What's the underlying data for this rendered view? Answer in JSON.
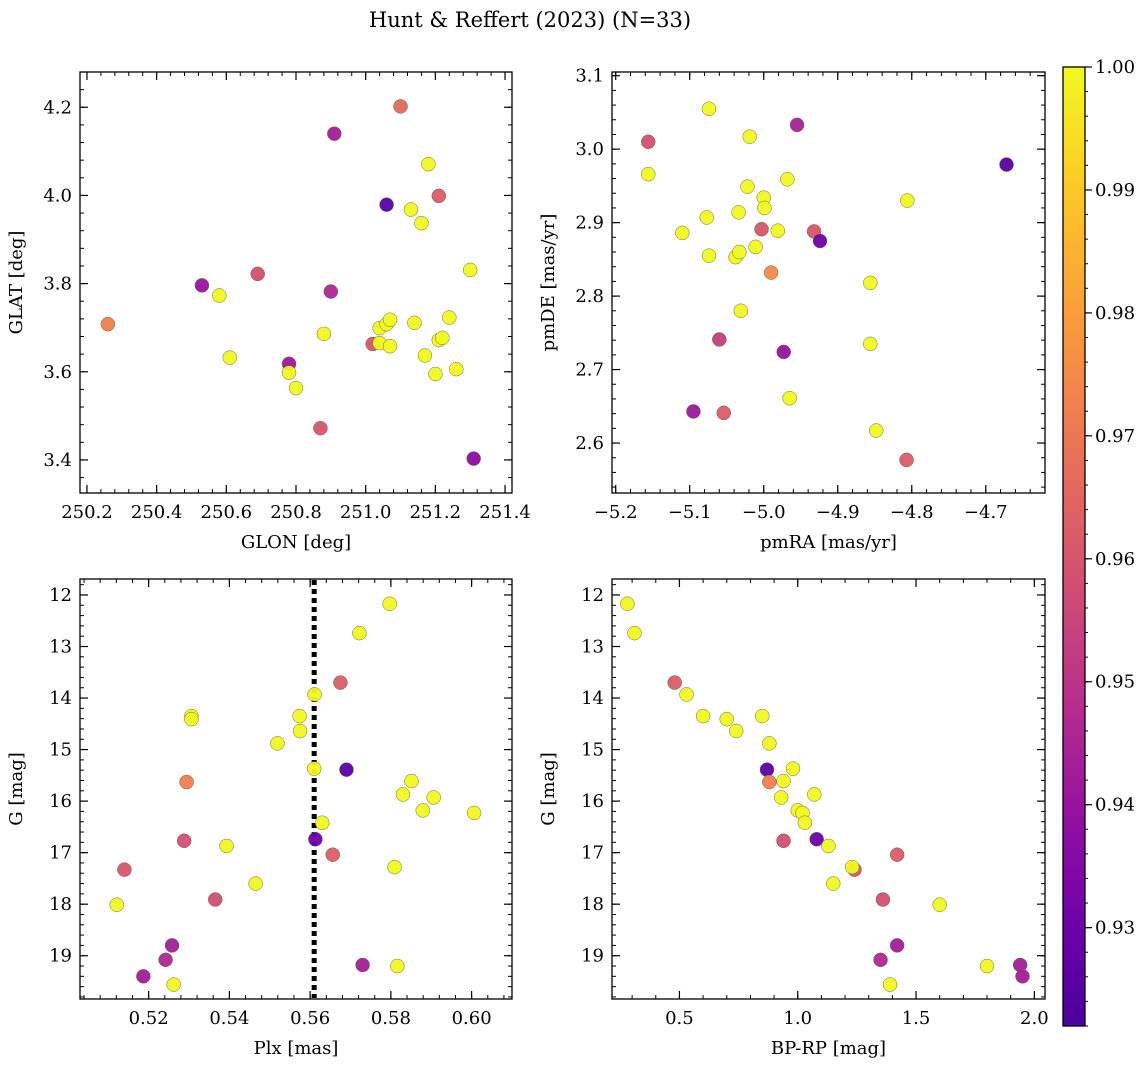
{
  "figure": {
    "title": "Hunt & Reffert (2023) (N=33)"
  },
  "colorbar": {
    "colormap": "plasma",
    "min": 0.922,
    "max": 1.0,
    "ticks": [
      "0.93",
      "0.94",
      "0.95",
      "0.96",
      "0.97",
      "0.98",
      "0.99",
      "1.00"
    ],
    "tick_values": [
      0.93,
      0.94,
      0.95,
      0.96,
      0.97,
      0.98,
      0.99,
      1.0
    ]
  },
  "chart_data": [
    {
      "type": "scatter",
      "id": "glon-glat",
      "xlabel": "GLON [deg]",
      "ylabel": "GLAT [deg]",
      "xlim": [
        250.18,
        251.42
      ],
      "ylim": [
        3.325,
        4.28
      ],
      "xticks": [
        "250.2",
        "250.4",
        "250.6",
        "250.8",
        "251.0",
        "251.2",
        "251.4"
      ],
      "xtick_values": [
        250.2,
        250.4,
        250.6,
        250.8,
        251.0,
        251.2,
        251.4
      ],
      "yticks": [
        "3.4",
        "3.6",
        "3.8",
        "4.0",
        "4.2"
      ],
      "ytick_values": [
        3.4,
        3.6,
        3.8,
        4.0,
        4.2
      ],
      "yinvert": false,
      "points": [
        {
          "x": 250.26,
          "y": 3.708,
          "c": 0.972
        },
        {
          "x": 250.53,
          "y": 3.796,
          "c": 0.94
        },
        {
          "x": 250.58,
          "y": 3.773,
          "c": 1.0
        },
        {
          "x": 250.61,
          "y": 3.632,
          "c": 1.0
        },
        {
          "x": 250.69,
          "y": 3.822,
          "c": 0.958
        },
        {
          "x": 250.78,
          "y": 3.618,
          "c": 0.941
        },
        {
          "x": 250.78,
          "y": 3.598,
          "c": 1.0
        },
        {
          "x": 250.8,
          "y": 3.563,
          "c": 1.0
        },
        {
          "x": 250.87,
          "y": 3.472,
          "c": 0.96
        },
        {
          "x": 250.88,
          "y": 3.686,
          "c": 1.0
        },
        {
          "x": 250.9,
          "y": 3.782,
          "c": 0.946
        },
        {
          "x": 250.91,
          "y": 4.14,
          "c": 0.943
        },
        {
          "x": 251.02,
          "y": 3.663,
          "c": 0.96
        },
        {
          "x": 251.04,
          "y": 3.665,
          "c": 1.0
        },
        {
          "x": 251.04,
          "y": 3.699,
          "c": 1.0
        },
        {
          "x": 251.06,
          "y": 3.708,
          "c": 1.0
        },
        {
          "x": 251.07,
          "y": 3.718,
          "c": 1.0
        },
        {
          "x": 251.07,
          "y": 3.658,
          "c": 1.0
        },
        {
          "x": 251.06,
          "y": 3.979,
          "c": 0.925
        },
        {
          "x": 251.1,
          "y": 4.202,
          "c": 0.966
        },
        {
          "x": 251.13,
          "y": 3.968,
          "c": 1.0
        },
        {
          "x": 251.14,
          "y": 3.711,
          "c": 1.0
        },
        {
          "x": 251.16,
          "y": 3.937,
          "c": 1.0
        },
        {
          "x": 251.17,
          "y": 3.637,
          "c": 1.0
        },
        {
          "x": 251.18,
          "y": 4.071,
          "c": 1.0
        },
        {
          "x": 251.2,
          "y": 3.595,
          "c": 1.0
        },
        {
          "x": 251.21,
          "y": 3.672,
          "c": 1.0
        },
        {
          "x": 251.21,
          "y": 3.999,
          "c": 0.962
        },
        {
          "x": 251.22,
          "y": 3.677,
          "c": 1.0
        },
        {
          "x": 251.24,
          "y": 3.723,
          "c": 1.0
        },
        {
          "x": 251.26,
          "y": 3.606,
          "c": 1.0
        },
        {
          "x": 251.3,
          "y": 3.831,
          "c": 1.0
        },
        {
          "x": 251.31,
          "y": 3.403,
          "c": 0.937
        }
      ]
    },
    {
      "type": "scatter",
      "id": "pmra-pmde",
      "xlabel": "pmRA [mas/yr]",
      "ylabel": "pmDE [mas/yr]",
      "xlim": [
        -5.205,
        -4.62
      ],
      "ylim": [
        2.532,
        3.105
      ],
      "xticks": [
        "−5.2",
        "−5.1",
        "−5.0",
        "−4.9",
        "−4.8",
        "−4.7"
      ],
      "xtick_values": [
        -5.2,
        -5.1,
        -5.0,
        -4.9,
        -4.8,
        -4.7
      ],
      "yticks": [
        "2.6",
        "2.7",
        "2.8",
        "2.9",
        "3.0",
        "3.1"
      ],
      "ytick_values": [
        2.6,
        2.7,
        2.8,
        2.9,
        3.0,
        3.1
      ],
      "yinvert": false,
      "points": [
        {
          "x": -5.156,
          "y": 3.01,
          "c": 0.958
        },
        {
          "x": -5.156,
          "y": 2.966,
          "c": 1.0
        },
        {
          "x": -5.11,
          "y": 2.886,
          "c": 1.0
        },
        {
          "x": -5.095,
          "y": 2.643,
          "c": 0.941
        },
        {
          "x": -5.077,
          "y": 2.907,
          "c": 1.0
        },
        {
          "x": -5.074,
          "y": 3.055,
          "c": 1.0
        },
        {
          "x": -5.074,
          "y": 2.855,
          "c": 1.0
        },
        {
          "x": -5.06,
          "y": 2.741,
          "c": 0.953
        },
        {
          "x": -5.054,
          "y": 2.641,
          "c": 0.962
        },
        {
          "x": -5.038,
          "y": 2.853,
          "c": 1.0
        },
        {
          "x": -5.034,
          "y": 2.914,
          "c": 1.0
        },
        {
          "x": -5.033,
          "y": 2.86,
          "c": 1.0
        },
        {
          "x": -5.031,
          "y": 2.78,
          "c": 1.0
        },
        {
          "x": -5.022,
          "y": 2.949,
          "c": 1.0
        },
        {
          "x": -5.019,
          "y": 3.017,
          "c": 1.0
        },
        {
          "x": -5.011,
          "y": 2.867,
          "c": 1.0
        },
        {
          "x": -5.003,
          "y": 2.891,
          "c": 0.96
        },
        {
          "x": -5.0,
          "y": 2.934,
          "c": 1.0
        },
        {
          "x": -4.999,
          "y": 2.92,
          "c": 1.0
        },
        {
          "x": -4.99,
          "y": 2.832,
          "c": 0.975
        },
        {
          "x": -4.981,
          "y": 2.889,
          "c": 1.0
        },
        {
          "x": -4.973,
          "y": 2.724,
          "c": 0.94
        },
        {
          "x": -4.968,
          "y": 2.959,
          "c": 1.0
        },
        {
          "x": -4.965,
          "y": 2.661,
          "c": 1.0
        },
        {
          "x": -4.955,
          "y": 3.033,
          "c": 0.944
        },
        {
          "x": -4.932,
          "y": 2.888,
          "c": 0.96
        },
        {
          "x": -4.924,
          "y": 2.875,
          "c": 0.93
        },
        {
          "x": -4.856,
          "y": 2.818,
          "c": 1.0
        },
        {
          "x": -4.856,
          "y": 2.735,
          "c": 1.0
        },
        {
          "x": -4.848,
          "y": 2.617,
          "c": 1.0
        },
        {
          "x": -4.807,
          "y": 2.577,
          "c": 0.962
        },
        {
          "x": -4.806,
          "y": 2.93,
          "c": 1.0
        },
        {
          "x": -4.672,
          "y": 2.979,
          "c": 0.925
        }
      ]
    },
    {
      "type": "scatter",
      "id": "plx-g",
      "xlabel": "Plx [mas]",
      "ylabel": "G [mag]",
      "xlim": [
        0.503,
        0.61
      ],
      "ylim": [
        19.84,
        11.69
      ],
      "xticks": [
        "0.52",
        "0.54",
        "0.56",
        "0.58",
        "0.60"
      ],
      "xtick_values": [
        0.52,
        0.54,
        0.56,
        0.58,
        0.6
      ],
      "yticks": [
        "12",
        "13",
        "14",
        "15",
        "16",
        "17",
        "18",
        "19"
      ],
      "ytick_values": [
        12,
        13,
        14,
        15,
        16,
        17,
        18,
        19
      ],
      "yinvert": true,
      "vline": {
        "x": 0.561,
        "style": "dotted",
        "color": "#000000"
      },
      "points": [
        {
          "x": 0.5121,
          "y": 18.01,
          "c": 1.0
        },
        {
          "x": 0.514,
          "y": 17.33,
          "c": 0.96
        },
        {
          "x": 0.5187,
          "y": 19.4,
          "c": 0.943
        },
        {
          "x": 0.5242,
          "y": 19.08,
          "c": 0.946
        },
        {
          "x": 0.5258,
          "y": 18.8,
          "c": 0.943
        },
        {
          "x": 0.5262,
          "y": 19.56,
          "c": 1.0
        },
        {
          "x": 0.5288,
          "y": 16.77,
          "c": 0.958
        },
        {
          "x": 0.5294,
          "y": 15.63,
          "c": 0.972
        },
        {
          "x": 0.5306,
          "y": 14.35,
          "c": 1.0
        },
        {
          "x": 0.5306,
          "y": 14.41,
          "c": 1.0
        },
        {
          "x": 0.5365,
          "y": 17.91,
          "c": 0.958
        },
        {
          "x": 0.5393,
          "y": 16.87,
          "c": 1.0
        },
        {
          "x": 0.5465,
          "y": 17.6,
          "c": 1.0
        },
        {
          "x": 0.5519,
          "y": 14.88,
          "c": 1.0
        },
        {
          "x": 0.5574,
          "y": 14.35,
          "c": 1.0
        },
        {
          "x": 0.5575,
          "y": 14.64,
          "c": 1.0
        },
        {
          "x": 0.5611,
          "y": 13.93,
          "c": 1.0
        },
        {
          "x": 0.561,
          "y": 15.37,
          "c": 1.0
        },
        {
          "x": 0.5613,
          "y": 16.74,
          "c": 0.93
        },
        {
          "x": 0.563,
          "y": 16.42,
          "c": 1.0
        },
        {
          "x": 0.5656,
          "y": 17.04,
          "c": 0.962
        },
        {
          "x": 0.5675,
          "y": 13.7,
          "c": 0.962
        },
        {
          "x": 0.569,
          "y": 15.39,
          "c": 0.925
        },
        {
          "x": 0.5722,
          "y": 12.74,
          "c": 1.0
        },
        {
          "x": 0.573,
          "y": 19.18,
          "c": 0.943
        },
        {
          "x": 0.5797,
          "y": 12.17,
          "c": 1.0
        },
        {
          "x": 0.5809,
          "y": 17.28,
          "c": 1.0
        },
        {
          "x": 0.5816,
          "y": 19.2,
          "c": 1.0
        },
        {
          "x": 0.583,
          "y": 15.87,
          "c": 1.0
        },
        {
          "x": 0.5851,
          "y": 15.61,
          "c": 1.0
        },
        {
          "x": 0.5879,
          "y": 16.18,
          "c": 1.0
        },
        {
          "x": 0.5906,
          "y": 15.93,
          "c": 1.0
        },
        {
          "x": 0.6006,
          "y": 16.23,
          "c": 1.0
        }
      ]
    },
    {
      "type": "scatter",
      "id": "bprp-g",
      "xlabel": "BP-RP [mag]",
      "ylabel": "G [mag]",
      "xlim": [
        0.215,
        2.045
      ],
      "ylim": [
        19.84,
        11.69
      ],
      "xticks": [
        "0.5",
        "1.0",
        "1.5",
        "2.0"
      ],
      "xtick_values": [
        0.5,
        1.0,
        1.5,
        2.0
      ],
      "yticks": [
        "12",
        "13",
        "14",
        "15",
        "16",
        "17",
        "18",
        "19"
      ],
      "ytick_values": [
        12,
        13,
        14,
        15,
        16,
        17,
        18,
        19
      ],
      "yinvert": true,
      "points": [
        {
          "x": 0.28,
          "y": 12.17,
          "c": 1.0
        },
        {
          "x": 0.31,
          "y": 12.74,
          "c": 1.0
        },
        {
          "x": 0.48,
          "y": 13.7,
          "c": 0.962
        },
        {
          "x": 0.53,
          "y": 13.93,
          "c": 1.0
        },
        {
          "x": 0.6,
          "y": 14.35,
          "c": 1.0
        },
        {
          "x": 0.7,
          "y": 14.41,
          "c": 1.0
        },
        {
          "x": 0.74,
          "y": 14.64,
          "c": 1.0
        },
        {
          "x": 0.85,
          "y": 14.35,
          "c": 1.0
        },
        {
          "x": 0.88,
          "y": 14.88,
          "c": 1.0
        },
        {
          "x": 0.87,
          "y": 15.39,
          "c": 0.925
        },
        {
          "x": 0.88,
          "y": 15.63,
          "c": 0.972
        },
        {
          "x": 0.94,
          "y": 15.61,
          "c": 1.0
        },
        {
          "x": 0.98,
          "y": 15.37,
          "c": 1.0
        },
        {
          "x": 0.93,
          "y": 15.93,
          "c": 1.0
        },
        {
          "x": 1.0,
          "y": 16.18,
          "c": 1.0
        },
        {
          "x": 1.02,
          "y": 16.23,
          "c": 1.0
        },
        {
          "x": 1.03,
          "y": 16.42,
          "c": 1.0
        },
        {
          "x": 1.07,
          "y": 15.87,
          "c": 1.0
        },
        {
          "x": 0.94,
          "y": 16.77,
          "c": 0.958
        },
        {
          "x": 1.08,
          "y": 16.74,
          "c": 0.93
        },
        {
          "x": 1.13,
          "y": 16.87,
          "c": 1.0
        },
        {
          "x": 1.15,
          "y": 17.6,
          "c": 1.0
        },
        {
          "x": 1.24,
          "y": 17.33,
          "c": 0.96
        },
        {
          "x": 1.23,
          "y": 17.28,
          "c": 1.0
        },
        {
          "x": 1.42,
          "y": 17.04,
          "c": 0.962
        },
        {
          "x": 1.36,
          "y": 17.91,
          "c": 0.958
        },
        {
          "x": 1.6,
          "y": 18.01,
          "c": 1.0
        },
        {
          "x": 1.42,
          "y": 18.8,
          "c": 0.943
        },
        {
          "x": 1.35,
          "y": 19.08,
          "c": 0.946
        },
        {
          "x": 1.39,
          "y": 19.56,
          "c": 1.0
        },
        {
          "x": 1.8,
          "y": 19.2,
          "c": 1.0
        },
        {
          "x": 1.94,
          "y": 19.18,
          "c": 0.943
        },
        {
          "x": 1.95,
          "y": 19.4,
          "c": 0.943
        }
      ]
    }
  ]
}
